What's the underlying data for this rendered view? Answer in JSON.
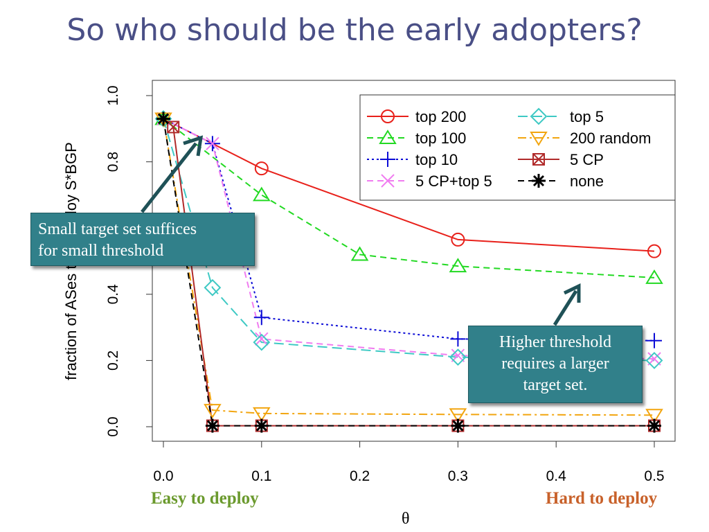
{
  "slide": {
    "title": "So who should be the early adopters?",
    "callout_left": [
      "Small target set suffices",
      "for small threshold"
    ],
    "callout_right": [
      "Higher threshold",
      "requires a larger",
      "target set."
    ],
    "easy_label": "Easy to deploy",
    "hard_label": "Hard to deploy",
    "easy_color": "#6b9a2e",
    "hard_color": "#c8612a"
  },
  "chart_data": {
    "type": "line",
    "xlabel": "θ",
    "ylabel": "fraction of ASes that deploy S*BGP",
    "xlim": [
      0,
      0.5
    ],
    "ylim": [
      0,
      1.0
    ],
    "xticks": [
      "0.0",
      "0.1",
      "0.2",
      "0.3",
      "0.4",
      "0.5"
    ],
    "yticks": [
      "0.0",
      "0.2",
      "0.4",
      "0.6",
      "0.8",
      "1.0"
    ],
    "legend_position": "top-right",
    "series": [
      {
        "name": "top 200",
        "color": "#e8201a",
        "dash": "solid",
        "marker": "circle",
        "points": [
          [
            0,
            0.93
          ],
          [
            0.1,
            0.78
          ],
          [
            0.3,
            0.565
          ],
          [
            0.5,
            0.53
          ]
        ]
      },
      {
        "name": "top 100",
        "color": "#22d922",
        "dash": "dashed",
        "marker": "triangle-up",
        "points": [
          [
            0,
            0.93
          ],
          [
            0.1,
            0.7
          ],
          [
            0.2,
            0.52
          ],
          [
            0.3,
            0.485
          ],
          [
            0.5,
            0.45
          ]
        ]
      },
      {
        "name": "top 10",
        "color": "#0b0bd6",
        "dash": "dotted",
        "marker": "plus",
        "points": [
          [
            0,
            0.93
          ],
          [
            0.05,
            0.855
          ],
          [
            0.1,
            0.33
          ],
          [
            0.3,
            0.265
          ],
          [
            0.5,
            0.26
          ]
        ]
      },
      {
        "name": "5 CP+top 5",
        "color": "#f07cf0",
        "dash": "dashed",
        "marker": "x",
        "points": [
          [
            0,
            0.93
          ],
          [
            0.05,
            0.855
          ],
          [
            0.1,
            0.265
          ],
          [
            0.3,
            0.215
          ],
          [
            0.5,
            0.205
          ]
        ]
      },
      {
        "name": "top 5",
        "color": "#3ec9c4",
        "dash": "longdash",
        "marker": "diamond",
        "points": [
          [
            0,
            0.93
          ],
          [
            0.05,
            0.42
          ],
          [
            0.1,
            0.255
          ],
          [
            0.3,
            0.21
          ],
          [
            0.5,
            0.2
          ]
        ]
      },
      {
        "name": "200 random",
        "color": "#f2a50f",
        "dash": "dashdot",
        "marker": "triangle-down",
        "points": [
          [
            0,
            0.93
          ],
          [
            0.05,
            0.05
          ],
          [
            0.1,
            0.04
          ],
          [
            0.3,
            0.037
          ],
          [
            0.5,
            0.035
          ]
        ]
      },
      {
        "name": "5 CP",
        "color": "#b02a2a",
        "dash": "solid",
        "marker": "boxed-x",
        "points": [
          [
            0.01,
            0.905
          ],
          [
            0.05,
            0.003
          ],
          [
            0.1,
            0.003
          ],
          [
            0.3,
            0.003
          ],
          [
            0.5,
            0.003
          ]
        ]
      },
      {
        "name": "none",
        "color": "#000000",
        "dash": "dashed",
        "marker": "asterisk",
        "points": [
          [
            0,
            0.93
          ],
          [
            0.05,
            0.003
          ],
          [
            0.1,
            0.003
          ],
          [
            0.3,
            0.003
          ],
          [
            0.5,
            0.003
          ]
        ]
      }
    ]
  }
}
